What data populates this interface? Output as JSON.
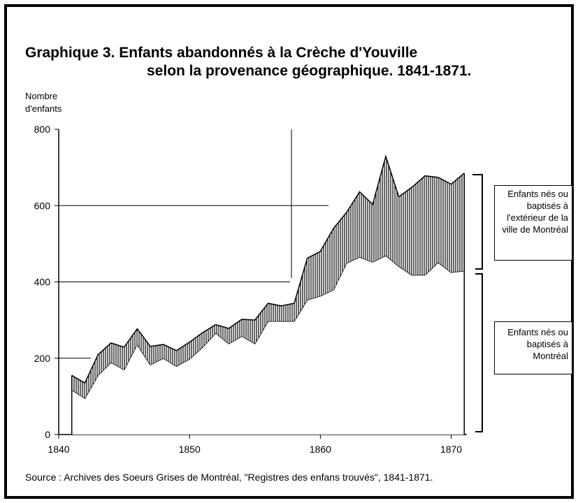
{
  "chart_data": {
    "type": "stacked_area",
    "title": [
      "Graphique  3.  Enfants abandonnés à la Crèche d'Youville",
      "selon la provenance géographique. 1841-1871."
    ],
    "y_label": [
      "Nombre",
      "d'enfants"
    ],
    "source": "Source :  Archives des Soeurs Grises de Montréal, \"Registres des enfans trouvés\", 1841-1871.",
    "x": [
      1841,
      1842,
      1843,
      1844,
      1845,
      1846,
      1847,
      1848,
      1849,
      1850,
      1851,
      1852,
      1853,
      1854,
      1855,
      1856,
      1857,
      1858,
      1859,
      1860,
      1861,
      1862,
      1863,
      1864,
      1865,
      1866,
      1867,
      1868,
      1869,
      1870,
      1871
    ],
    "series": [
      {
        "name": "Enfants nés ou baptisés à  Montréal",
        "color": "#ffffff",
        "values": [
          117,
          95,
          155,
          189,
          170,
          236,
          183,
          200,
          179,
          198,
          229,
          266,
          238,
          258,
          238,
          297,
          297,
          297,
          353,
          363,
          379,
          449,
          465,
          452,
          469,
          441,
          418,
          418,
          451,
          425,
          429
        ]
      },
      {
        "name": "Enfants nés ou baptisés à l'extérieur de la ville de Montréal",
        "color": "#000000",
        "values": [
          38,
          40,
          54,
          51,
          59,
          41,
          48,
          36,
          41,
          44,
          38,
          22,
          40,
          44,
          62,
          47,
          40,
          47,
          109,
          117,
          161,
          133,
          171,
          151,
          260,
          182,
          230,
          260,
          223,
          231,
          256
        ]
      }
    ],
    "xlim": [
      1840,
      1871.2
    ],
    "xticks": [
      1840,
      1850,
      1860,
      1870
    ],
    "ylim": [
      0,
      800
    ],
    "yticks": [
      0,
      200,
      400,
      600,
      800
    ]
  }
}
